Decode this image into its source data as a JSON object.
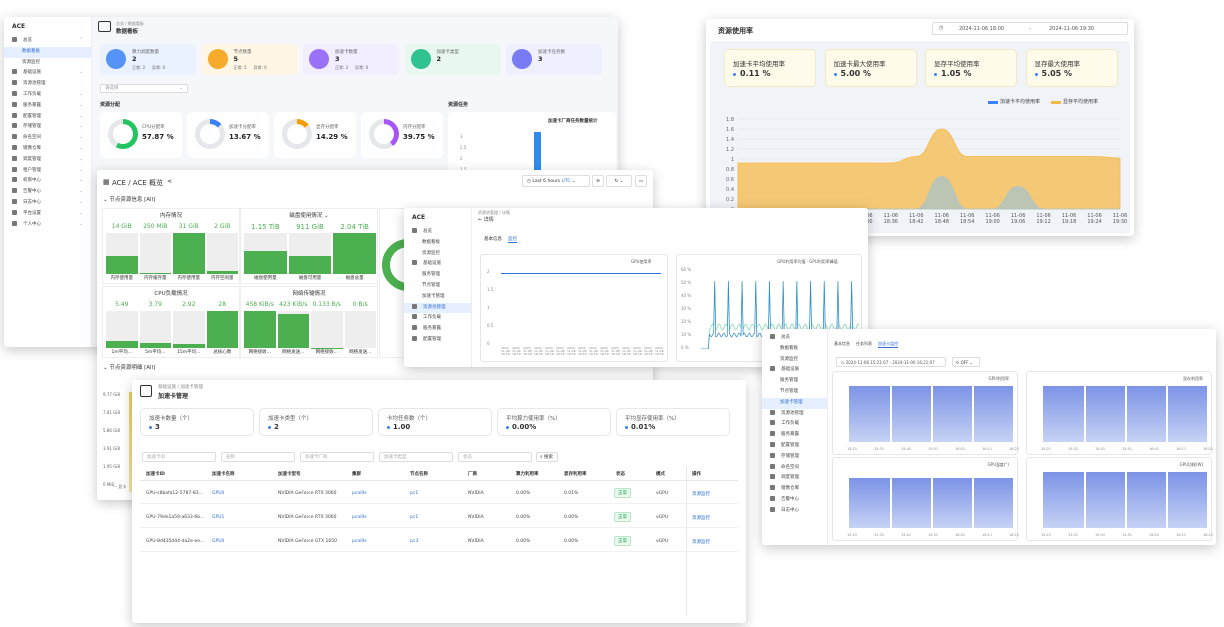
{
  "w1": {
    "logo": "ACE",
    "title": "数据看板",
    "breadcrumb": "总览 / 数据看板",
    "sidebar": [
      {
        "label": "总览",
        "type": "group",
        "exp": "⌃"
      },
      {
        "label": "数据看板",
        "type": "sub",
        "active": true
      },
      {
        "label": "资源监控",
        "type": "sub"
      },
      {
        "label": "基础设施",
        "type": "group",
        "exp": "⌄"
      },
      {
        "label": "资源池管理",
        "type": "group"
      },
      {
        "label": "工作负载",
        "type": "group",
        "exp": "⌄"
      },
      {
        "label": "服务暴露",
        "type": "group",
        "exp": "⌄"
      },
      {
        "label": "配置管理",
        "type": "group",
        "exp": "⌄"
      },
      {
        "label": "存储管理",
        "type": "group",
        "exp": "⌄"
      },
      {
        "label": "命名空间",
        "type": "group",
        "exp": "⌄"
      },
      {
        "label": "镜像仓库",
        "type": "group",
        "exp": "⌄"
      },
      {
        "label": "调度管理",
        "type": "group",
        "exp": "⌄"
      },
      {
        "label": "租户管理",
        "type": "group",
        "exp": "⌄"
      },
      {
        "label": "权限中心",
        "type": "group",
        "exp": "⌄"
      },
      {
        "label": "告警中心",
        "type": "group",
        "exp": "⌄"
      },
      {
        "label": "日志中心",
        "type": "group",
        "exp": "⌄"
      },
      {
        "label": "平台设置",
        "type": "group",
        "exp": "⌄"
      },
      {
        "label": "个人中心",
        "type": "group",
        "exp": "⌄"
      }
    ],
    "stats": [
      {
        "label": "算力调度数量",
        "value": "2",
        "sub_ok": "正常: 2",
        "sub_err": "异常: 0",
        "color": "#3b82f6",
        "bg": "#eaf2ff"
      },
      {
        "label": "节点数量",
        "value": "5",
        "sub_ok": "正常: 5",
        "sub_err": "异常: 0",
        "color": "#f59e0b",
        "bg": "#fff6e6"
      },
      {
        "label": "加速卡数量",
        "value": "3",
        "sub_ok": "正常: 3",
        "sub_err": "异常: 0",
        "color": "#8b5cf6",
        "bg": "#f2edff"
      },
      {
        "label": "加速卡类型",
        "value": "2",
        "sub_ok": "",
        "sub_err": "",
        "color": "#10b981",
        "bg": "#e8f8f1"
      },
      {
        "label": "加速卡任务数",
        "value": "3",
        "sub_ok": "",
        "sub_err": "",
        "color": "#6366f1",
        "bg": "#eef0ff"
      }
    ],
    "pool_select": "请选择",
    "section_resource": "资源分配",
    "section_task": "资源任务",
    "gauges": [
      {
        "label": "CPU分配率",
        "value": "57.87 %",
        "pct": 57.87,
        "color": "#22c55e"
      },
      {
        "label": "加速卡分配率",
        "value": "13.67 %",
        "pct": 13.67,
        "color": "#3b82f6"
      },
      {
        "label": "显存分配率",
        "value": "14.29 %",
        "pct": 14.29,
        "color": "#f59e0b"
      },
      {
        "label": "内存分配率",
        "value": "39.75 %",
        "pct": 39.75,
        "color": "#a855f7"
      }
    ],
    "task_chart": {
      "title": "加速卡厂商任务数量统计",
      "yticks": [
        "3",
        "2.5",
        "2",
        "1.5"
      ]
    }
  },
  "w2": {
    "title": "资源使用率",
    "time_from": "2024-11-06 18:00",
    "time_sep": "-",
    "time_to": "2024-11-06 19:30",
    "cards": [
      {
        "label": "加速卡平均使用率",
        "value": "0.11 %"
      },
      {
        "label": "加速卡最大使用率",
        "value": "5.00 %"
      },
      {
        "label": "显存平均使用率",
        "value": "1.05 %"
      },
      {
        "label": "显存最大使用率",
        "value": "5.05 %"
      }
    ],
    "legend": [
      "加速卡平均使用率",
      "显存平均使用率"
    ],
    "colors": {
      "gpu": "#a9c4c8",
      "mem": "#f5b94a"
    },
    "yticks": [
      "1.8",
      "1.6",
      "1.4",
      "1.2",
      "1",
      "0.8",
      "0.6",
      "0.4",
      "0.2",
      "0"
    ],
    "xticks": [
      [
        "11-06",
        "18:00"
      ],
      [
        "11-06",
        "18:06"
      ],
      [
        "11-06",
        "18:12"
      ],
      [
        "11-06",
        "18:18"
      ],
      [
        "11-06",
        "18:24"
      ],
      [
        "11-06",
        "18:30"
      ],
      [
        "11-06",
        "18:36"
      ],
      [
        "11-06",
        "18:42"
      ],
      [
        "11-06",
        "18:48"
      ],
      [
        "11-06",
        "18:54"
      ],
      [
        "11-06",
        "19:00"
      ],
      [
        "11-06",
        "19:06"
      ],
      [
        "11-06",
        "19:12"
      ],
      [
        "11-06",
        "19:18"
      ],
      [
        "11-06",
        "19:24"
      ],
      [
        "11-06",
        "19:30"
      ]
    ],
    "chart_data": {
      "type": "area",
      "x": [
        "18:00",
        "18:06",
        "18:12",
        "18:18",
        "18:24",
        "18:30",
        "18:36",
        "18:42",
        "18:48",
        "18:54",
        "19:00",
        "19:06",
        "19:12",
        "19:18",
        "19:24",
        "19:30"
      ],
      "ylim": [
        0,
        1.8
      ],
      "series": [
        {
          "name": "加速卡平均使用率",
          "values": [
            0,
            0,
            0,
            0,
            0,
            0,
            0,
            0,
            0.65,
            0,
            0,
            0.45,
            0,
            0,
            0,
            0
          ]
        },
        {
          "name": "显存平均使用率",
          "values": [
            0.92,
            0.92,
            0.92,
            0.92,
            0.92,
            0.92,
            0.92,
            1.05,
            1.6,
            1.05,
            1.05,
            1.05,
            1.05,
            1.05,
            1.05,
            1.02
          ]
        }
      ]
    }
  },
  "w3": {
    "title": "ACE / ACE 概览",
    "time_range": "Last 6 hours",
    "tz": "UTC",
    "section1": "节点资源信息 [All]",
    "section2": "节点资源明细 [All]",
    "panels": [
      {
        "title": "内存情况",
        "bars": [
          {
            "v": "14 GiB",
            "lbl": "内存使用量",
            "pct": 0.45
          },
          {
            "v": "250 MiB",
            "lbl": "内存缓存量",
            "pct": 0.02
          },
          {
            "v": "31 GiB",
            "lbl": "内存使用量",
            "pct": 1
          },
          {
            "v": "2 GiB",
            "lbl": "内存空闲量",
            "pct": 0.07
          }
        ]
      },
      {
        "title": "磁盘使用情况 ⌄",
        "bars": [
          {
            "v": "1.15 TiB",
            "lbl": "磁盘使用量",
            "pct": 0.55
          },
          {
            "v": "911 GiB",
            "lbl": "磁盘可用量",
            "pct": 0.43
          },
          {
            "v": "2.04 TiB",
            "lbl": "磁盘总量",
            "pct": 1
          }
        ]
      },
      {
        "title": "CPU负载情况",
        "bars": [
          {
            "v": "5.49",
            "lbl": "1m平均...",
            "pct": 0.2
          },
          {
            "v": "3.79",
            "lbl": "5m平均...",
            "pct": 0.14
          },
          {
            "v": "2.92",
            "lbl": "15m平均...",
            "pct": 0.1
          },
          {
            "v": "28",
            "lbl": "总核心数",
            "pct": 1
          }
        ]
      },
      {
        "title": "网络传输情况",
        "bars": [
          {
            "v": "458 KiB/s",
            "lbl": "网络接收...",
            "pct": 1
          },
          {
            "v": "423 KiB/s",
            "lbl": "网络发送...",
            "pct": 0.92
          },
          {
            "v": "0.133 B/s",
            "lbl": "网络接收...",
            "pct": 0.01
          },
          {
            "v": "0 B/s",
            "lbl": "网络发送...",
            "pct": 0
          }
        ]
      }
    ],
    "yticks": [
      "9.77 GiB",
      "7.81 GiB",
      "5.86 GiB",
      "3.91 GiB",
      "1.95 GiB",
      "0 MiB"
    ],
    "legend_stub": "— 显卡"
  },
  "w4": {
    "logo": "ACE",
    "breadcrumb": "资源池管理 / 详情",
    "back": "← 详情",
    "tabs": [
      "基本信息",
      "监控"
    ],
    "sidebar": [
      {
        "label": "总览",
        "type": "group"
      },
      {
        "label": "数据看板",
        "type": "sub"
      },
      {
        "label": "资源监控",
        "type": "sub"
      },
      {
        "label": "基础设施",
        "type": "group"
      },
      {
        "label": "服务管理",
        "type": "sub"
      },
      {
        "label": "节点管理",
        "type": "sub"
      },
      {
        "label": "加速卡管理",
        "type": "sub"
      },
      {
        "label": "资源池管理",
        "type": "group",
        "active": true
      },
      {
        "label": "工作负载",
        "type": "group"
      },
      {
        "label": "服务暴露",
        "type": "group"
      },
      {
        "label": "配置管理",
        "type": "group"
      }
    ],
    "chart1_legend": "GPU使用率",
    "chart1_y": [
      "2",
      "1.5",
      "1",
      "0.5",
      "0"
    ],
    "chart2_legend": [
      "GPU利用率均值",
      "GPU利用率峰值"
    ],
    "chart2_y": [
      "60 %",
      "50 %",
      "40 %",
      "30 %",
      "20 %",
      "10 %",
      "0 %"
    ],
    "xtick": "2024 11-06 18:18"
  },
  "w5": {
    "breadcrumb": "基础设施 / 加速卡管理",
    "title": "加速卡管理",
    "stats": [
      {
        "label": "加速卡数量（个）",
        "value": "3"
      },
      {
        "label": "加速卡类型（个）",
        "value": "2"
      },
      {
        "label": "卡均任务数（个）",
        "value": "1.00"
      },
      {
        "label": "平均算力使用率（%）",
        "value": "0.00%"
      },
      {
        "label": "平均显存使用率（%）",
        "value": "0.01%"
      }
    ],
    "filters": [
      "加速卡ID",
      "名称",
      "加速卡厂商",
      "加速卡类型",
      "状态"
    ],
    "search": "搜索",
    "columns": [
      "加速卡ID",
      "加速卡名称",
      "加速卡型号",
      "集群",
      "节点名称",
      "厂商",
      "算力利用率",
      "显存利用率",
      "状态",
      "模式",
      "操作"
    ],
    "rows": [
      [
        "GPU-c8bafa12-5787-83...",
        "GPU0",
        "NVIDIA GeForce RTX 3060",
        "pcai9s",
        "pc1",
        "NVIDIA",
        "0.00%",
        "0.01%",
        "正常",
        "vGPU",
        "资源监控"
      ],
      [
        "GPU-79de1a59-a633-6b...",
        "GPU1",
        "NVIDIA GeForce RTX 3060",
        "pcai9s",
        "pc1",
        "NVIDIA",
        "0.00%",
        "0.00%",
        "正常",
        "vGPU",
        "资源监控"
      ],
      [
        "GPU-8d435d44-da2e-ee...",
        "GPU0",
        "NVIDIA GeForce GTX 1650",
        "pcai9s",
        "pc3",
        "NVIDIA",
        "0.00%",
        "0.00%",
        "正常",
        "vGPU",
        "资源监控"
      ]
    ]
  },
  "w6": {
    "sidebar": [
      {
        "label": "总览",
        "type": "group"
      },
      {
        "label": "数据看板",
        "type": "sub"
      },
      {
        "label": "资源监控",
        "type": "sub"
      },
      {
        "label": "基础设施",
        "type": "group"
      },
      {
        "label": "服务管理",
        "type": "sub"
      },
      {
        "label": "节点管理",
        "type": "sub"
      },
      {
        "label": "加速卡管理",
        "type": "sub",
        "active": true
      },
      {
        "label": "资源池管理",
        "type": "group"
      },
      {
        "label": "工作负载",
        "type": "group"
      },
      {
        "label": "服务暴露",
        "type": "group"
      },
      {
        "label": "配置管理",
        "type": "group"
      },
      {
        "label": "存储管理",
        "type": "group"
      },
      {
        "label": "命名空间",
        "type": "group"
      },
      {
        "label": "调度管理",
        "type": "group"
      },
      {
        "label": "镜像仓库",
        "type": "group"
      },
      {
        "label": "告警中心",
        "type": "group"
      },
      {
        "label": "日志中心",
        "type": "group"
      }
    ],
    "tabs": [
      "基本信息",
      "任务列表",
      "加速卡监控"
    ],
    "from": "2024-11-06 15:21:07",
    "to": "2024-11-06 16:21:07",
    "refresh": "OFF",
    "charts": [
      "GPU利用率",
      "显存利用率",
      "GPU温度(°)",
      "GPU功耗(W)"
    ],
    "xticks": [
      "15:21",
      "15:26",
      "15:31",
      "15:36",
      "15:41",
      "15:46",
      "15:51",
      "15:56",
      "16:01",
      "16:06",
      "16:11",
      "16:16",
      "16:21"
    ]
  }
}
